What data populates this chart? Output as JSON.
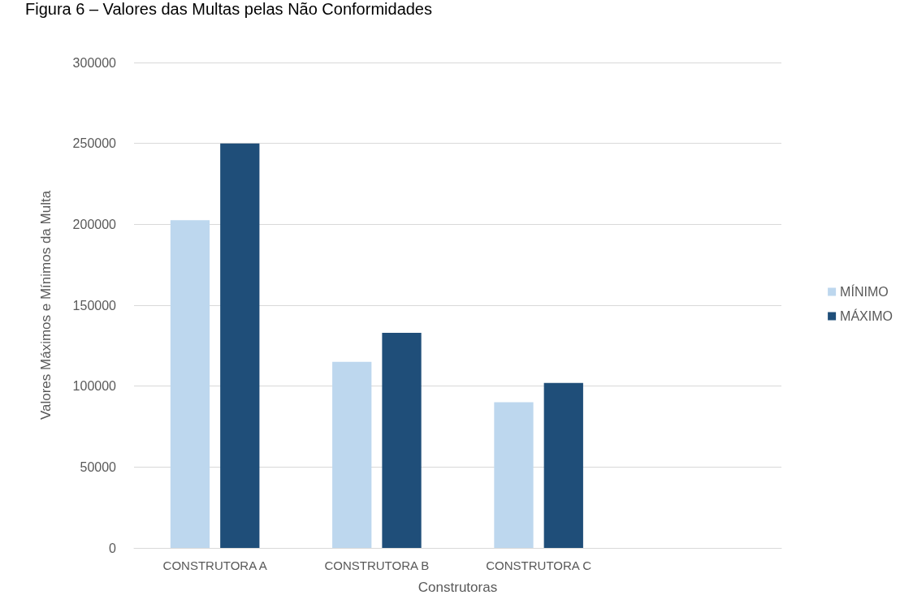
{
  "chart_data": {
    "type": "bar",
    "title": "Figura 6 – Valores das Multas pelas Não Conformidades",
    "xlabel": "Construtoras",
    "ylabel": "Valores Máximos e Mínimos da Multa",
    "categories": [
      "CONSTRUTORA A",
      "CONSTRUTORA B",
      "CONSTRUTORA C",
      null
    ],
    "series": [
      {
        "name": "MÍNIMO",
        "color": "#bdd7ee",
        "values": [
          202500,
          115000,
          90000,
          null
        ]
      },
      {
        "name": "MÁXIMO",
        "color": "#1f4e79",
        "values": [
          250000,
          133000,
          102000,
          null
        ]
      }
    ],
    "ylim": [
      0,
      300000
    ],
    "yticks": [
      0,
      50000,
      100000,
      150000,
      200000,
      250000,
      300000
    ],
    "grid": "y",
    "legend": "right"
  }
}
